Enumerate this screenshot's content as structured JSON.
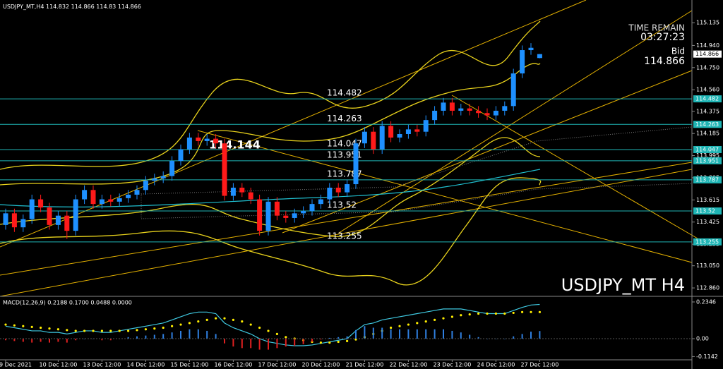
{
  "chart_data": {
    "type": "candlestick",
    "symbol": "USDJPY_MT,H4",
    "watermark": "USDJPY_MT H4",
    "time_remain_label": "TIME REMAIN",
    "time_remain": "03:27:23",
    "bid_label": "Bid",
    "annotation": "114.144",
    "up_color": "#1e90ff",
    "down_color": "#ff1a1a",
    "level_color": "#1fb5b5",
    "categories": [
      "9 Dec 2021",
      null,
      null,
      null,
      null,
      null,
      "10 Dec 12:00",
      null,
      null,
      null,
      null,
      "13 Dec 12:00",
      null,
      null,
      null,
      null,
      "14 Dec 12:00",
      null,
      null,
      null,
      null,
      "15 Dec 12:00",
      null,
      null,
      null,
      null,
      "16 Dec 12:00",
      null,
      null,
      null,
      null,
      "17 Dec 12:00",
      null,
      null,
      null,
      null,
      "20 Dec 12:00",
      null,
      null,
      null,
      null,
      "21 Dec 12:00",
      null,
      null,
      null,
      null,
      "22 Dec 12:00",
      null,
      null,
      null,
      null,
      "23 Dec 12:00",
      null,
      null,
      null,
      null,
      "24 Dec 12:00",
      null,
      null,
      null,
      null,
      "27 Dec 12:00"
    ],
    "open": [
      113.4,
      113.5,
      113.38,
      113.45,
      113.62,
      113.55,
      113.4,
      113.48,
      113.35,
      113.62,
      113.7,
      113.58,
      113.62,
      113.6,
      113.63,
      113.66,
      113.7,
      113.78,
      113.8,
      113.82,
      113.95,
      114.05,
      114.15,
      114.12,
      114.14,
      114.1,
      113.65,
      113.72,
      113.68,
      113.62,
      113.35,
      113.6,
      113.48,
      113.46,
      113.5,
      113.52,
      113.58,
      113.62,
      113.72,
      113.68,
      113.75,
      114.1,
      114.2,
      114.05,
      114.25,
      114.15,
      114.18,
      114.22,
      114.2,
      114.3,
      114.38,
      114.45,
      114.38,
      114.4,
      114.38,
      114.36,
      114.34,
      114.38,
      114.42,
      114.7,
      114.9,
      114.832
    ],
    "high": [
      113.54,
      113.54,
      113.49,
      113.66,
      113.66,
      113.59,
      113.52,
      113.52,
      113.66,
      113.74,
      113.74,
      113.66,
      113.66,
      113.67,
      113.7,
      113.74,
      113.82,
      113.84,
      113.86,
      113.99,
      114.09,
      114.19,
      114.19,
      114.18,
      114.18,
      114.14,
      113.76,
      113.76,
      113.72,
      113.66,
      113.64,
      113.64,
      113.52,
      113.54,
      113.56,
      113.62,
      113.66,
      113.76,
      113.76,
      113.79,
      114.14,
      114.24,
      114.24,
      114.29,
      114.29,
      114.22,
      114.26,
      114.26,
      114.34,
      114.42,
      114.49,
      114.49,
      114.44,
      114.44,
      114.42,
      114.4,
      114.42,
      114.46,
      114.74,
      114.94,
      114.96,
      114.866
    ],
    "low": [
      113.36,
      113.34,
      113.34,
      113.41,
      113.51,
      113.36,
      113.36,
      113.28,
      113.31,
      113.58,
      113.54,
      113.54,
      113.56,
      113.56,
      113.59,
      113.62,
      113.66,
      113.74,
      113.76,
      113.78,
      113.91,
      114.01,
      114.08,
      114.08,
      114.06,
      113.61,
      113.61,
      113.64,
      113.58,
      113.31,
      113.31,
      113.44,
      113.42,
      113.42,
      113.46,
      113.48,
      113.54,
      113.58,
      113.64,
      113.64,
      113.71,
      114.06,
      114.01,
      114.01,
      114.11,
      114.11,
      114.14,
      114.16,
      114.16,
      114.26,
      114.34,
      114.34,
      114.34,
      114.34,
      114.32,
      114.3,
      114.3,
      114.34,
      114.38,
      114.66,
      114.86,
      114.83
    ],
    "close": [
      113.5,
      113.38,
      113.45,
      113.62,
      113.55,
      113.4,
      113.48,
      113.35,
      113.62,
      113.7,
      113.58,
      113.62,
      113.6,
      113.63,
      113.66,
      113.7,
      113.78,
      113.8,
      113.82,
      113.95,
      114.05,
      114.15,
      114.12,
      114.14,
      114.1,
      113.65,
      113.72,
      113.68,
      113.62,
      113.35,
      113.6,
      113.48,
      113.46,
      113.5,
      113.52,
      113.58,
      113.62,
      113.72,
      113.68,
      113.75,
      114.1,
      114.2,
      114.05,
      114.25,
      114.15,
      114.18,
      114.22,
      114.2,
      114.3,
      114.38,
      114.45,
      114.38,
      114.4,
      114.38,
      114.36,
      114.34,
      114.38,
      114.42,
      114.7,
      114.9,
      114.92,
      114.866
    ],
    "levels": [
      114.482,
      114.263,
      114.047,
      113.951,
      113.787,
      113.52,
      113.255
    ],
    "ylim": [
      112.8,
      115.33
    ],
    "yticks": [
      115.135,
      {
        "value": 114.94,
        "label": "114.940"
      },
      {
        "value": 114.75,
        "label": "114.750"
      },
      {
        "value": 114.56,
        "label": "114.560"
      },
      114.375,
      114.185,
      113.995,
      113.805,
      113.615,
      113.425,
      113.235,
      {
        "value": 113.05,
        "label": "113.050"
      },
      {
        "value": 112.86,
        "label": "112.860"
      }
    ],
    "macd": {
      "title": "MACD(12,26,9) 0.2188 0.1700 0.0488 0.0000",
      "ylim": [
        -0.135,
        0.266
      ],
      "yticks": [
        0.2346,
        {
          "value": 0,
          "label": "0.00"
        },
        -0.1142
      ],
      "series": [
        {
          "name": "MACD",
          "color": "#3fc8e0",
          "values": [
            0.08,
            0.07,
            0.06,
            0.05,
            0.05,
            0.04,
            0.04,
            0.03,
            0.04,
            0.05,
            0.05,
            0.04,
            0.04,
            0.05,
            0.06,
            0.07,
            0.08,
            0.09,
            0.1,
            0.12,
            0.14,
            0.16,
            0.17,
            0.17,
            0.16,
            0.1,
            0.07,
            0.05,
            0.03,
            0.0,
            -0.02,
            -0.03,
            -0.04,
            -0.045,
            -0.045,
            -0.04,
            -0.03,
            -0.02,
            -0.01,
            0.0,
            0.05,
            0.09,
            0.1,
            0.12,
            0.13,
            0.14,
            0.15,
            0.16,
            0.17,
            0.18,
            0.19,
            0.19,
            0.19,
            0.18,
            0.17,
            0.16,
            0.16,
            0.16,
            0.18,
            0.2,
            0.215,
            0.2188
          ]
        },
        {
          "name": "Signal",
          "color": "#ffee00",
          "values": [
            0.09,
            0.085,
            0.08,
            0.075,
            0.07,
            0.065,
            0.06,
            0.055,
            0.05,
            0.05,
            0.05,
            0.05,
            0.05,
            0.05,
            0.05,
            0.055,
            0.06,
            0.065,
            0.07,
            0.08,
            0.09,
            0.1,
            0.11,
            0.12,
            0.13,
            0.13,
            0.12,
            0.11,
            0.09,
            0.07,
            0.05,
            0.03,
            0.01,
            0.0,
            -0.01,
            -0.02,
            -0.025,
            -0.025,
            -0.02,
            -0.015,
            -0.005,
            0.01,
            0.03,
            0.05,
            0.07,
            0.08,
            0.09,
            0.1,
            0.11,
            0.12,
            0.13,
            0.14,
            0.15,
            0.155,
            0.16,
            0.16,
            0.16,
            0.16,
            0.165,
            0.17,
            0.17,
            0.17
          ]
        },
        {
          "name": "Histogram",
          "color": "#2f7fe0",
          "neg_color": "#e02020",
          "values": [
            -0.01,
            -0.015,
            -0.02,
            -0.025,
            -0.02,
            -0.025,
            -0.02,
            -0.025,
            -0.01,
            0,
            0,
            -0.01,
            -0.01,
            0,
            0.01,
            0.015,
            0.02,
            0.025,
            0.03,
            0.04,
            0.05,
            0.06,
            0.06,
            0.05,
            0.03,
            -0.03,
            -0.05,
            -0.06,
            -0.06,
            -0.07,
            -0.07,
            -0.06,
            -0.05,
            -0.045,
            -0.035,
            -0.02,
            -0.005,
            0.005,
            0.01,
            0.015,
            0.055,
            0.08,
            0.07,
            0.07,
            0.06,
            0.06,
            0.06,
            0.06,
            0.06,
            0.06,
            0.06,
            0.05,
            0.04,
            0.025,
            0.01,
            0,
            0,
            0,
            0.015,
            0.03,
            0.045,
            0.0488
          ]
        }
      ]
    }
  }
}
